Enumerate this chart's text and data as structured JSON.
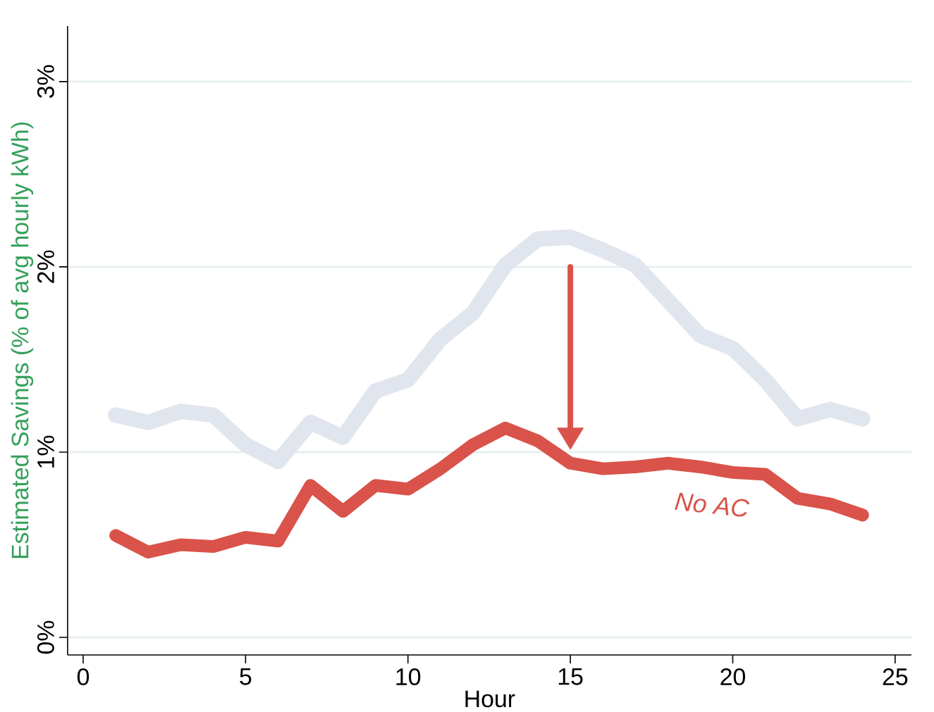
{
  "chart_data": {
    "type": "line",
    "xlabel": "Hour",
    "ylabel": "Estimated Savings (% of avg hourly kWh)",
    "x": [
      1,
      2,
      3,
      4,
      5,
      6,
      7,
      8,
      9,
      10,
      11,
      12,
      13,
      14,
      15,
      16,
      17,
      18,
      19,
      20,
      21,
      22,
      23,
      24
    ],
    "series": [
      {
        "color": "#e1e5ee",
        "values": [
          1.2,
          1.16,
          1.22,
          1.2,
          1.04,
          0.95,
          1.16,
          1.08,
          1.33,
          1.39,
          1.61,
          1.75,
          2.01,
          2.15,
          2.16,
          2.09,
          2.01,
          1.82,
          1.63,
          1.56,
          1.39,
          1.18,
          1.23,
          1.18
        ]
      },
      {
        "name": "No AC",
        "color": "#d9534a",
        "values": [
          0.55,
          0.46,
          0.5,
          0.49,
          0.54,
          0.52,
          0.82,
          0.68,
          0.82,
          0.8,
          0.91,
          1.04,
          1.13,
          1.06,
          0.94,
          0.91,
          0.92,
          0.94,
          0.92,
          0.89,
          0.88,
          0.75,
          0.72,
          0.66
        ]
      }
    ],
    "xlim": [
      -0.48,
      25.5
    ],
    "xticks": [
      0,
      5,
      10,
      15,
      20,
      25
    ],
    "ylim": [
      -0.095,
      3.3
    ],
    "yticks": [
      {
        "value": 0,
        "label": "0%"
      },
      {
        "value": 1,
        "label": "1%"
      },
      {
        "value": 2,
        "label": "2%"
      },
      {
        "value": 3,
        "label": "3%"
      }
    ],
    "grid": "y",
    "marker": "none",
    "line_style": "solid"
  }
}
